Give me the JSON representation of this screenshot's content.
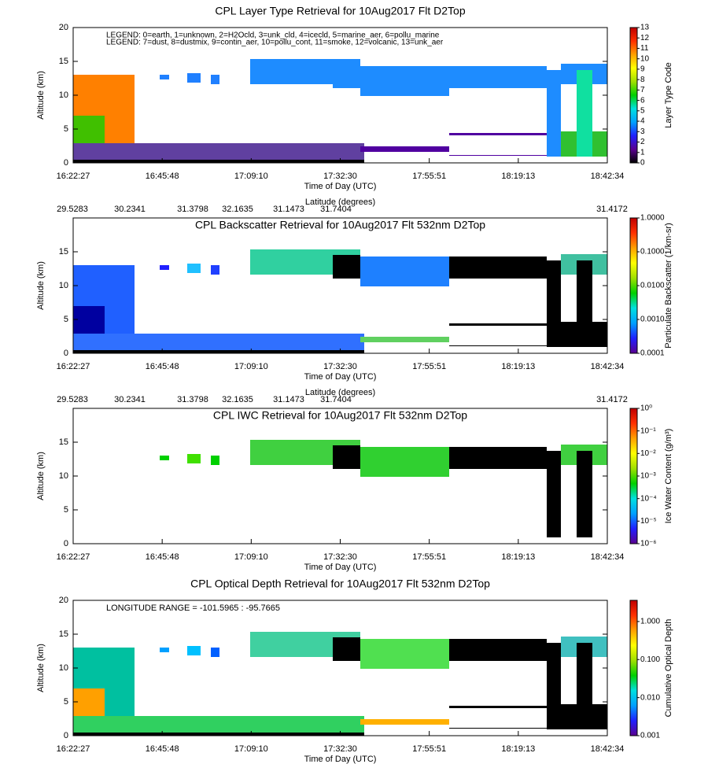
{
  "chart_data": [
    {
      "type": "heatmap",
      "title": "CPL Layer Type Retrieval for 10Aug2017 Flt D2Top",
      "legend_lines": [
        "LEGEND: 0=earth, 1=unknown, 2=H2Ocld, 3=unk_cld, 4=icecld, 5=marine_aer, 6=pollu_marine",
        "LEGEND: 7=dust, 8=dustmix, 9=contin_aer, 10=pollu_cont, 11=smoke, 12=volcanic, 13=unk_aer"
      ],
      "x_label": "Time of Day (UTC)",
      "y_label": "Altitude (km)",
      "categories": [
        "16:22:27",
        "16:45:48",
        "17:09:10",
        "17:32:30",
        "17:55:51",
        "18:19:13",
        "18:42:34"
      ],
      "ylim": [
        0,
        20
      ],
      "yticks": [
        0,
        5,
        10,
        15,
        20
      ],
      "colorbar_label": "Layer Type Code",
      "colorbar_log": false,
      "clim": [
        0,
        13
      ],
      "colorbar_ticks": [
        0,
        1,
        2,
        3,
        4,
        5,
        6,
        7,
        8,
        9,
        10,
        11,
        12,
        13
      ],
      "colormap": [
        "#000000",
        "#5a0090",
        "#2020ff",
        "#00a0ff",
        "#00e0e0",
        "#00d000",
        "#a0e000",
        "#ffff00",
        "#ffa000",
        "#ff3000",
        "#c00000"
      ]
    },
    {
      "type": "heatmap",
      "title": "CPL Backscatter Retrieval for 10Aug2017 Flt 532nm D2Top",
      "lat_label": "Latitude (degrees)",
      "latitudes": [
        29.5283,
        30.2341,
        31.3798,
        32.1635,
        31.1473,
        31.7404,
        31.4172
      ],
      "x_label": "Time of Day (UTC)",
      "y_label": "Altitude (km)",
      "categories": [
        "16:22:27",
        "16:45:48",
        "17:09:10",
        "17:32:30",
        "17:55:51",
        "18:19:13",
        "18:42:34"
      ],
      "ylim": [
        0,
        20
      ],
      "yticks": [
        0,
        5,
        10,
        15
      ],
      "colorbar_label": "Particulate Backscatter (1/km-sr)",
      "colorbar_log": true,
      "clim": [
        0.0001,
        1
      ],
      "colorbar_ticks": [
        {
          "value": 1,
          "label": "1.0000"
        },
        {
          "value": 0.1,
          "label": "0.1000"
        },
        {
          "value": 0.01,
          "label": "0.0100"
        },
        {
          "value": 0.001,
          "label": "0.0010"
        },
        0.0001
      ],
      "colormap": [
        "#5a0090",
        "#2020ff",
        "#00a0ff",
        "#00e0e0",
        "#00d000",
        "#a0e000",
        "#ffff00",
        "#ffa000",
        "#ff3000",
        "#c00000"
      ]
    },
    {
      "type": "heatmap",
      "title": "CPL IWC Retrieval for 10Aug2017 Flt 532nm D2Top",
      "lat_label": "Latitude (degrees)",
      "latitudes": [
        29.5283,
        30.2341,
        31.3798,
        32.1635,
        31.1473,
        31.7404,
        31.4172
      ],
      "x_label": "Time of Day (UTC)",
      "y_label": "Altitude (km)",
      "categories": [
        "16:22:27",
        "16:45:48",
        "17:09:10",
        "17:32:30",
        "17:55:51",
        "18:19:13",
        "18:42:34"
      ],
      "ylim": [
        0,
        20
      ],
      "yticks": [
        0,
        5,
        10,
        15
      ],
      "colorbar_label": "Ice Water Content (g/m³)",
      "colorbar_log": true,
      "clim": [
        1e-06,
        1
      ],
      "colorbar_ticks": [
        {
          "value": 1,
          "label": "10⁰"
        },
        {
          "value": 0.1,
          "label": "10⁻¹"
        },
        {
          "value": 0.01,
          "label": "10⁻²"
        },
        {
          "value": 0.001,
          "label": "10⁻³"
        },
        {
          "value": 0.0001,
          "label": "10⁻⁴"
        },
        {
          "value": 1e-05,
          "label": "10⁻⁵"
        },
        {
          "value": 1e-06,
          "label": "10⁻⁶"
        }
      ],
      "colormap": [
        "#5a0090",
        "#2020ff",
        "#00a0ff",
        "#00e0e0",
        "#00d000",
        "#a0e000",
        "#ffff00",
        "#ffa000",
        "#ff3000",
        "#c00000"
      ]
    },
    {
      "type": "heatmap",
      "title": "CPL Optical Depth Retrieval for 10Aug2017 Flt 532nm D2Top",
      "annotation": "LONGITUDE RANGE =  -101.5965 :  -95.7665",
      "x_label": "Time of Day (UTC)",
      "y_label": "Altitude (km)",
      "categories": [
        "16:22:27",
        "16:45:48",
        "17:09:10",
        "17:32:30",
        "17:55:51",
        "18:19:13",
        "18:42:34"
      ],
      "ylim": [
        0,
        20
      ],
      "yticks": [
        0,
        5,
        10,
        15,
        20
      ],
      "colorbar_label": "Cumulative Optical Depth",
      "colorbar_log": true,
      "clim": [
        0.001,
        3.6
      ],
      "colorbar_ticks": [
        {
          "value": 1,
          "label": "1.000"
        },
        {
          "value": 0.1,
          "label": "0.100"
        },
        {
          "value": 0.01,
          "label": "0.010"
        },
        0.001
      ],
      "colormap": [
        "#5a0090",
        "#2020ff",
        "#00a0ff",
        "#00e0e0",
        "#00d000",
        "#a0e000",
        "#ffff00",
        "#ffa000",
        "#ff3000",
        "#c00000"
      ]
    }
  ]
}
